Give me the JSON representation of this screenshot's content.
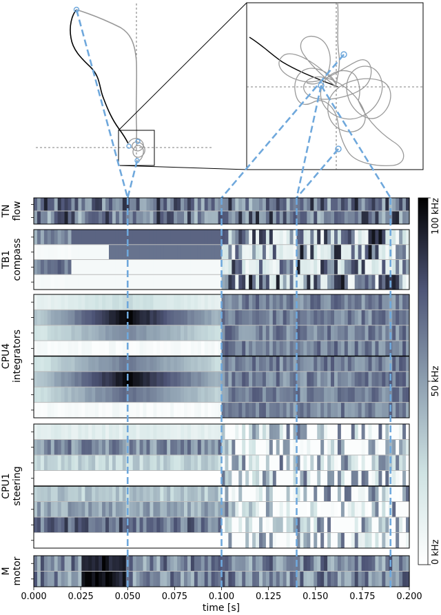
{
  "chart_data": {
    "type": "heatmap",
    "title": "",
    "xlabel": "time [s]",
    "x_ticks": [
      "0.000",
      "0.025",
      "0.050",
      "0.075",
      "0.100",
      "0.125",
      "0.150",
      "0.175",
      "0.200"
    ],
    "x_tick_values": [
      0.0,
      0.025,
      0.05,
      0.075,
      0.1,
      0.125,
      0.15,
      0.175,
      0.2
    ],
    "xlim": [
      0.0,
      0.2
    ],
    "colorbar": {
      "label_top": "100 kHz",
      "label_mid": "50 kHz",
      "label_bottom": "0 kHz",
      "range": [
        0,
        100
      ],
      "colormap": "bone_r"
    },
    "marker_times": [
      0.05,
      0.1,
      0.14,
      0.19
    ],
    "marker_color": "#6fa8dc",
    "groups": [
      {
        "label_line1": "TN",
        "label_line2": "flow",
        "rows": 2,
        "subblocks": 1
      },
      {
        "label_line1": "TB1",
        "label_line2": "compass",
        "rows": 4,
        "subblocks": 1
      },
      {
        "label_line1": "CPU4",
        "label_line2": "integrators",
        "rows": 8,
        "subblocks": 2
      },
      {
        "label_line1": "CPU1",
        "label_line2": "steering",
        "rows": 8,
        "subblocks": 2
      },
      {
        "label_line1": "M",
        "label_line2": "motor",
        "rows": 2,
        "subblocks": 1
      }
    ],
    "trajectory_panel": {
      "description_free": true,
      "inbound_color": "#000000",
      "outbound_color": "#999999",
      "marker_color": "#6fa8dc"
    }
  }
}
